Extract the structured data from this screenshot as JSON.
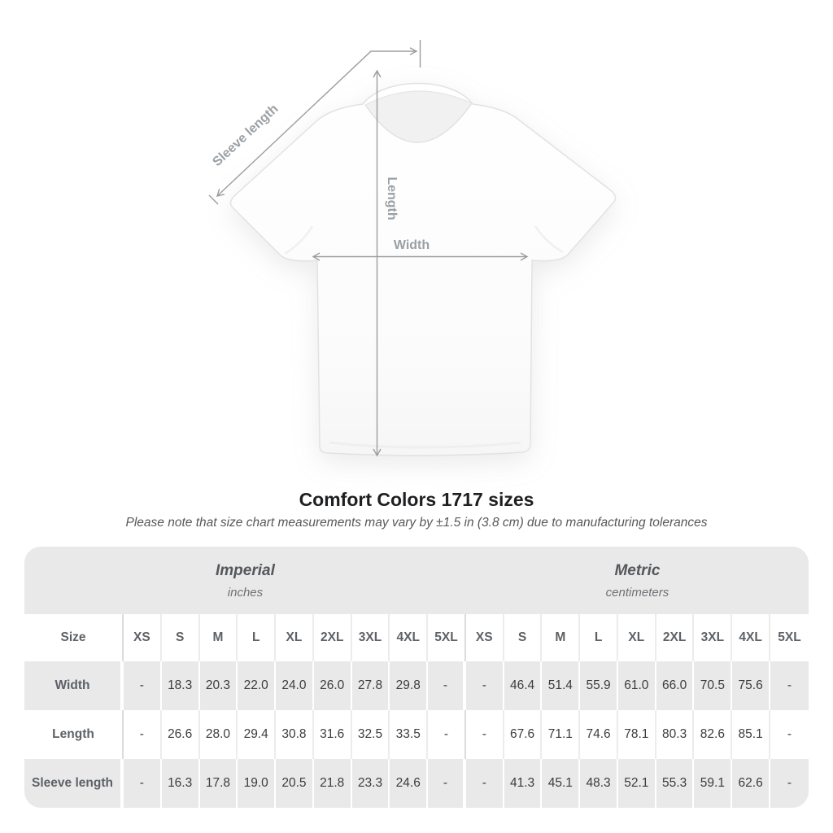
{
  "title": "Comfort Colors 1717 sizes",
  "note": "Please note that size chart measurements may vary by ±1.5 in (3.8 cm) due to manufacturing tolerances",
  "diagram": {
    "labels": {
      "sleeve": "Sleeve length",
      "length": "Length",
      "width": "Width"
    },
    "line_color": "#9a9da0",
    "label_color": "#9aa0a5"
  },
  "table": {
    "corner_label": "Size",
    "groups": [
      {
        "label": "Imperial",
        "unit": "inches"
      },
      {
        "label": "Metric",
        "unit": "centimeters"
      }
    ],
    "sizes": [
      "XS",
      "S",
      "M",
      "L",
      "XL",
      "2XL",
      "3XL",
      "4XL",
      "5XL"
    ],
    "rows": [
      {
        "label": "Width",
        "imperial": [
          "-",
          "18.3",
          "20.3",
          "22.0",
          "24.0",
          "26.0",
          "27.8",
          "29.8",
          "-"
        ],
        "metric": [
          "-",
          "46.4",
          "51.4",
          "55.9",
          "61.0",
          "66.0",
          "70.5",
          "75.6",
          "-"
        ]
      },
      {
        "label": "Length",
        "imperial": [
          "-",
          "26.6",
          "28.0",
          "29.4",
          "30.8",
          "31.6",
          "32.5",
          "33.5",
          "-"
        ],
        "metric": [
          "-",
          "67.6",
          "71.1",
          "74.6",
          "78.1",
          "80.3",
          "82.6",
          "85.1",
          "-"
        ]
      },
      {
        "label": "Sleeve length",
        "imperial": [
          "-",
          "16.3",
          "17.8",
          "19.0",
          "20.5",
          "21.8",
          "23.3",
          "24.6",
          "-"
        ],
        "metric": [
          "-",
          "41.3",
          "45.1",
          "48.3",
          "52.1",
          "55.3",
          "59.1",
          "62.6",
          "-"
        ]
      }
    ]
  },
  "colors": {
    "row_gray": "#e9e9e9",
    "background": "#ffffff",
    "title_text": "#1e1f21",
    "note_text": "#56585a",
    "header_text": "#5d6166",
    "value_text": "#3a3c3e"
  }
}
